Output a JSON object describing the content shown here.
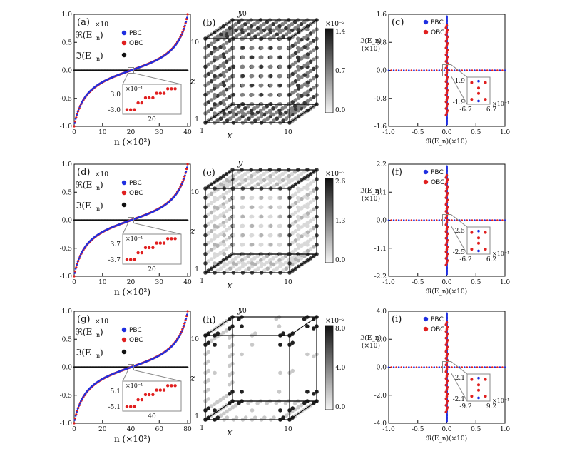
{
  "chart_data": [
    {
      "type": "scatter",
      "panel": "(a)",
      "scale_label": "×10",
      "legend": [
        {
          "label": "ℜ(E_n)",
          "marker": "PBC",
          "color": "#1f2fe0"
        },
        {
          "label": "",
          "marker": "OBC",
          "color": "#e01f1f"
        },
        {
          "label": "ℑ(E_n)",
          "marker": "",
          "color": "#111111"
        }
      ],
      "xlabel": "n (×10²)",
      "xlim": [
        0,
        41
      ],
      "ylim": [
        -1.0,
        1.0
      ],
      "xticks": [
        "0",
        "10",
        "20",
        "30",
        "40"
      ],
      "yticks": [
        "-1.0",
        "-0.5",
        "0.0",
        "0.5",
        "1.0"
      ],
      "n_max": 40,
      "inset": {
        "scale": "×10⁻¹",
        "yticks": [
          "3.0",
          "-3.0"
        ],
        "xtick": "20"
      }
    },
    {
      "type": "heatmap",
      "panel": "(b)",
      "axes": {
        "x": "x",
        "y": "y",
        "z": "z"
      },
      "corner_ticks": {
        "y_top": "10",
        "y_left": "10",
        "z_low": "1",
        "x_left": "1",
        "x_right": "10",
        "origin": "1"
      },
      "colorbar": {
        "scale": "×10⁻²",
        "ticks": [
          "1.4",
          "0.7",
          "0.0"
        ],
        "max": 1.4
      }
    },
    {
      "type": "scatter",
      "panel": "(c)",
      "legend": [
        "PBC",
        "OBC"
      ],
      "xlabel": "ℜ(E_n)(×10)",
      "ylabel": "ℑ(E_n)",
      "ylabel_scale": "(×10)",
      "xlim": [
        -1.0,
        1.0
      ],
      "ylim": [
        -1.6,
        1.6
      ],
      "xticks": [
        "-1.0",
        "-0.5",
        "0.0",
        "0.5",
        "1.0"
      ],
      "yticks": [
        "1.6",
        "0.8",
        "0.0",
        "-0.8",
        "-1.6"
      ],
      "inset": {
        "yticks": [
          "1.9",
          "-1.9"
        ],
        "xticks": [
          "-6.7",
          "6.7"
        ],
        "scale": "×10⁻¹"
      }
    },
    {
      "type": "scatter",
      "panel": "(d)",
      "scale_label": "×10",
      "xlabel": "n (×10²)",
      "xlim": [
        0,
        41
      ],
      "ylim": [
        -1.0,
        1.0
      ],
      "xticks": [
        "0",
        "10",
        "20",
        "30",
        "40"
      ],
      "yticks": [
        "-1.0",
        "-0.5",
        "0.0",
        "0.5",
        "1.0"
      ],
      "n_max": 40,
      "inset": {
        "scale": "×10⁻¹",
        "yticks": [
          "3.7",
          "-3.7"
        ],
        "xtick": "20"
      }
    },
    {
      "type": "heatmap",
      "panel": "(e)",
      "axes": {
        "x": "x",
        "y": "y",
        "z": "z"
      },
      "corner_ticks": {
        "y_left": "10",
        "z_low": "1",
        "x_left": "1",
        "x_right": "10",
        "origin": "1"
      },
      "colorbar": {
        "scale": "×10⁻²",
        "ticks": [
          "2.6",
          "1.3",
          "0.0"
        ],
        "max": 2.6
      }
    },
    {
      "type": "scatter",
      "panel": "(f)",
      "legend": [
        "PBC",
        "OBC"
      ],
      "xlabel": "ℜ(E_n)(×10)",
      "ylabel": "ℑ(E_n)",
      "ylabel_scale": "(×10)",
      "xlim": [
        -1.0,
        1.0
      ],
      "ylim": [
        -2.2,
        2.2
      ],
      "xticks": [
        "-1.0",
        "-0.5",
        "0.0",
        "0.5",
        "1.0"
      ],
      "yticks": [
        "2.2",
        "1.1",
        "0.0",
        "-1.1",
        "-2.2"
      ],
      "inset": {
        "yticks": [
          "2.5",
          "-2.5"
        ],
        "xticks": [
          "-6.2",
          "6.2"
        ],
        "scale": "×10⁻¹"
      }
    },
    {
      "type": "scatter",
      "panel": "(g)",
      "scale_label": "×10",
      "xlabel": "n (×10²)",
      "xlim": [
        0,
        82
      ],
      "ylim": [
        -1.0,
        1.0
      ],
      "xticks": [
        "0",
        "20",
        "40",
        "60",
        "80"
      ],
      "yticks": [
        "-1.0",
        "-0.5",
        "0.0",
        "0.5",
        "1.0"
      ],
      "n_max": 80,
      "inset": {
        "scale": "×10⁻¹",
        "yticks": [
          "5.1",
          "-5.1"
        ],
        "xtick": "40"
      }
    },
    {
      "type": "heatmap",
      "panel": "(h)",
      "axes": {
        "x": "x",
        "y": "y",
        "z": "z"
      },
      "corner_ticks": {
        "y_top": "10",
        "y_left": "10",
        "z_low": "1",
        "x_left": "1",
        "x_right": "10",
        "origin": "1"
      },
      "colorbar": {
        "scale": "×10⁻²",
        "ticks": [
          "8.0",
          "4.0",
          "0.0"
        ],
        "max": 8.0
      }
    },
    {
      "type": "scatter",
      "panel": "(i)",
      "legend": [
        "PBC",
        "OBC"
      ],
      "xlabel": "ℜ(E_n)(×10)",
      "ylabel": "ℑ(E_n)",
      "ylabel_scale": "(×10)",
      "xlim": [
        -1.0,
        1.0
      ],
      "ylim": [
        -4.0,
        4.0
      ],
      "xticks": [
        "-1.0",
        "-0.5",
        "0.0",
        "0.5",
        "1.0"
      ],
      "yticks": [
        "4.0",
        "2.0",
        "0.0",
        "-2.0",
        "-4.0"
      ],
      "inset": {
        "yticks": [
          "2.1",
          "-2.1"
        ],
        "xticks": [
          "-9.2",
          "9.2"
        ],
        "scale": "×10⁻¹"
      }
    }
  ],
  "colors": {
    "pbc": "#1f2fe0",
    "obc": "#e01f1f",
    "imag": "#111111",
    "inset_box": "#888888"
  }
}
